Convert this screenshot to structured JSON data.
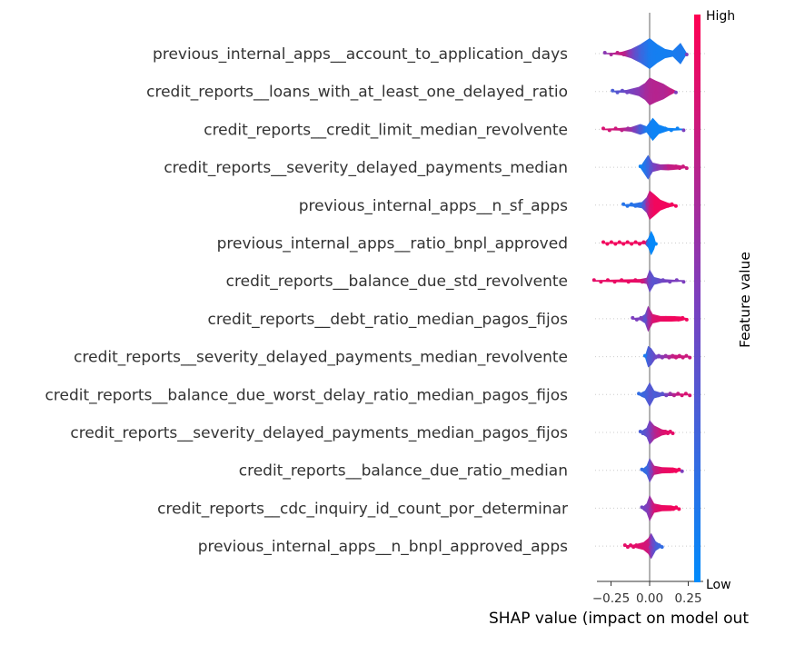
{
  "chart_data": {
    "type": "violin",
    "xlabel": "SHAP value (impact on model out",
    "xlim": [
      -0.31,
      0.31
    ],
    "xticks": [
      {
        "value": -0.25,
        "label": "−0.25"
      },
      {
        "value": 0.0,
        "label": "0.00"
      },
      {
        "value": 0.25,
        "label": "0.25"
      }
    ],
    "colorbar": {
      "title": "Feature value",
      "high_label": "High",
      "low_label": "Low",
      "low_color": "#008bfb",
      "mid_color": "#7c3fbe",
      "high_color": "#ff0052"
    },
    "features": [
      {
        "name": "previous_internal_apps__account_to_application_days",
        "min": -0.29,
        "max": 0.24,
        "shape": [
          [
            -0.29,
            0.02,
            0.55
          ],
          [
            -0.24,
            0.05,
            0.7
          ],
          [
            -0.18,
            0.12,
            0.8
          ],
          [
            -0.12,
            0.3,
            0.5
          ],
          [
            -0.06,
            0.6,
            0.25
          ],
          [
            0.0,
            1.0,
            0.1
          ],
          [
            0.05,
            0.6,
            0.08
          ],
          [
            0.1,
            0.3,
            0.08
          ],
          [
            0.15,
            0.2,
            0.1
          ],
          [
            0.2,
            0.7,
            0.12
          ],
          [
            0.24,
            0.05,
            0.1
          ]
        ]
      },
      {
        "name": "credit_reports__loans_with_at_least_one_delayed_ratio",
        "min": -0.24,
        "max": 0.17,
        "shape": [
          [
            -0.24,
            0.03,
            0.3
          ],
          [
            -0.15,
            0.1,
            0.45
          ],
          [
            -0.07,
            0.3,
            0.55
          ],
          [
            -0.03,
            0.55,
            0.65
          ],
          [
            0.0,
            0.9,
            0.7
          ],
          [
            0.04,
            0.7,
            0.72
          ],
          [
            0.09,
            0.5,
            0.7
          ],
          [
            0.13,
            0.25,
            0.75
          ],
          [
            0.17,
            0.03,
            0.8
          ]
        ]
      },
      {
        "name": "credit_reports__credit_limit_median_revolvente",
        "min": -0.3,
        "max": 0.22,
        "shape": [
          [
            -0.3,
            0.03,
            0.85
          ],
          [
            -0.2,
            0.08,
            0.8
          ],
          [
            -0.12,
            0.15,
            0.6
          ],
          [
            -0.06,
            0.35,
            0.3
          ],
          [
            -0.02,
            0.2,
            0.1
          ],
          [
            0.02,
            0.75,
            0.05
          ],
          [
            0.06,
            0.3,
            0.05
          ],
          [
            0.12,
            0.1,
            0.05
          ],
          [
            0.22,
            0.03,
            0.05
          ]
        ]
      },
      {
        "name": "credit_reports__severity_delayed_payments_median",
        "min": -0.06,
        "max": 0.24,
        "shape": [
          [
            -0.06,
            0.05,
            0.05
          ],
          [
            -0.03,
            0.5,
            0.15
          ],
          [
            -0.01,
            0.8,
            0.25
          ],
          [
            0.02,
            0.3,
            0.45
          ],
          [
            0.07,
            0.18,
            0.6
          ],
          [
            0.12,
            0.2,
            0.75
          ],
          [
            0.18,
            0.15,
            0.8
          ],
          [
            0.24,
            0.03,
            0.8
          ]
        ]
      },
      {
        "name": "previous_internal_apps__n_sf_apps",
        "min": -0.17,
        "max": 0.17,
        "shape": [
          [
            -0.17,
            0.03,
            0.15
          ],
          [
            -0.11,
            0.1,
            0.15
          ],
          [
            -0.05,
            0.2,
            0.2
          ],
          [
            -0.02,
            0.5,
            0.6
          ],
          [
            0.0,
            0.95,
            0.85
          ],
          [
            0.03,
            0.7,
            0.95
          ],
          [
            0.07,
            0.35,
            0.95
          ],
          [
            0.12,
            0.15,
            0.95
          ],
          [
            0.17,
            0.03,
            0.95
          ]
        ]
      },
      {
        "name": "previous_internal_apps__ratio_bnpl_approved",
        "min": -0.3,
        "max": 0.04,
        "shape": [
          [
            -0.3,
            0.02,
            0.95
          ],
          [
            -0.2,
            0.06,
            0.95
          ],
          [
            -0.1,
            0.06,
            0.95
          ],
          [
            -0.03,
            0.08,
            0.9
          ],
          [
            -0.01,
            0.3,
            0.05
          ],
          [
            0.01,
            0.8,
            0.02
          ],
          [
            0.03,
            0.4,
            0.02
          ],
          [
            0.04,
            0.03,
            0.02
          ]
        ]
      },
      {
        "name": "credit_reports__balance_due_std_revolvente",
        "min": -0.36,
        "max": 0.22,
        "shape": [
          [
            -0.36,
            0.02,
            0.9
          ],
          [
            -0.25,
            0.08,
            0.92
          ],
          [
            -0.15,
            0.1,
            0.92
          ],
          [
            -0.06,
            0.12,
            0.9
          ],
          [
            -0.02,
            0.2,
            0.6
          ],
          [
            0.0,
            0.75,
            0.4
          ],
          [
            0.03,
            0.25,
            0.35
          ],
          [
            0.08,
            0.12,
            0.45
          ],
          [
            0.15,
            0.08,
            0.5
          ],
          [
            0.22,
            0.02,
            0.5
          ]
        ]
      },
      {
        "name": "credit_reports__debt_ratio_median_pagos_fijos",
        "min": -0.11,
        "max": 0.24,
        "shape": [
          [
            -0.11,
            0.02,
            0.5
          ],
          [
            -0.06,
            0.1,
            0.5
          ],
          [
            -0.03,
            0.3,
            0.35
          ],
          [
            -0.01,
            0.85,
            0.6
          ],
          [
            0.02,
            0.3,
            0.85
          ],
          [
            0.07,
            0.18,
            0.92
          ],
          [
            0.14,
            0.18,
            0.95
          ],
          [
            0.2,
            0.15,
            0.95
          ],
          [
            0.24,
            0.02,
            0.95
          ]
        ]
      },
      {
        "name": "credit_reports__severity_delayed_payments_median_revolvente",
        "min": -0.03,
        "max": 0.26,
        "shape": [
          [
            -0.03,
            0.05,
            0.1
          ],
          [
            -0.01,
            0.7,
            0.3
          ],
          [
            0.01,
            0.55,
            0.35
          ],
          [
            0.04,
            0.12,
            0.45
          ],
          [
            0.1,
            0.1,
            0.6
          ],
          [
            0.16,
            0.12,
            0.8
          ],
          [
            0.22,
            0.08,
            0.8
          ],
          [
            0.26,
            0.02,
            0.8
          ]
        ]
      },
      {
        "name": "credit_reports__balance_due_worst_delay_ratio_median_pagos_fijos",
        "min": -0.07,
        "max": 0.26,
        "shape": [
          [
            -0.07,
            0.03,
            0.2
          ],
          [
            -0.03,
            0.25,
            0.25
          ],
          [
            0.0,
            0.8,
            0.35
          ],
          [
            0.03,
            0.25,
            0.3
          ],
          [
            0.08,
            0.1,
            0.35
          ],
          [
            0.15,
            0.1,
            0.7
          ],
          [
            0.21,
            0.06,
            0.85
          ],
          [
            0.26,
            0.02,
            0.85
          ]
        ]
      },
      {
        "name": "credit_reports__severity_delayed_payments_median_pagos_fijos",
        "min": -0.06,
        "max": 0.15,
        "shape": [
          [
            -0.06,
            0.03,
            0.3
          ],
          [
            -0.02,
            0.3,
            0.4
          ],
          [
            0.0,
            0.8,
            0.5
          ],
          [
            0.03,
            0.45,
            0.7
          ],
          [
            0.08,
            0.2,
            0.85
          ],
          [
            0.12,
            0.12,
            0.9
          ],
          [
            0.15,
            0.02,
            0.9
          ]
        ]
      },
      {
        "name": "credit_reports__balance_due_ratio_median",
        "min": -0.05,
        "max": 0.21,
        "shape": [
          [
            -0.05,
            0.03,
            0.2
          ],
          [
            -0.02,
            0.3,
            0.2
          ],
          [
            0.0,
            0.8,
            0.4
          ],
          [
            0.03,
            0.3,
            0.75
          ],
          [
            0.08,
            0.2,
            0.9
          ],
          [
            0.15,
            0.18,
            0.95
          ],
          [
            0.21,
            0.02,
            0.95
          ]
        ]
      },
      {
        "name": "credit_reports__cdc_inquiry_id_count_por_determinar",
        "min": -0.05,
        "max": 0.19,
        "shape": [
          [
            -0.05,
            0.03,
            0.45
          ],
          [
            -0.02,
            0.3,
            0.5
          ],
          [
            0.0,
            0.85,
            0.6
          ],
          [
            0.03,
            0.3,
            0.85
          ],
          [
            0.08,
            0.2,
            0.92
          ],
          [
            0.14,
            0.18,
            0.95
          ],
          [
            0.19,
            0.02,
            0.95
          ]
        ]
      },
      {
        "name": "previous_internal_apps__n_bnpl_approved_apps",
        "min": -0.16,
        "max": 0.08,
        "shape": [
          [
            -0.16,
            0.02,
            0.9
          ],
          [
            -0.1,
            0.1,
            0.9
          ],
          [
            -0.04,
            0.25,
            0.85
          ],
          [
            -0.01,
            0.5,
            0.8
          ],
          [
            0.01,
            0.85,
            0.5
          ],
          [
            0.04,
            0.3,
            0.3
          ],
          [
            0.08,
            0.02,
            0.2
          ]
        ]
      }
    ]
  }
}
